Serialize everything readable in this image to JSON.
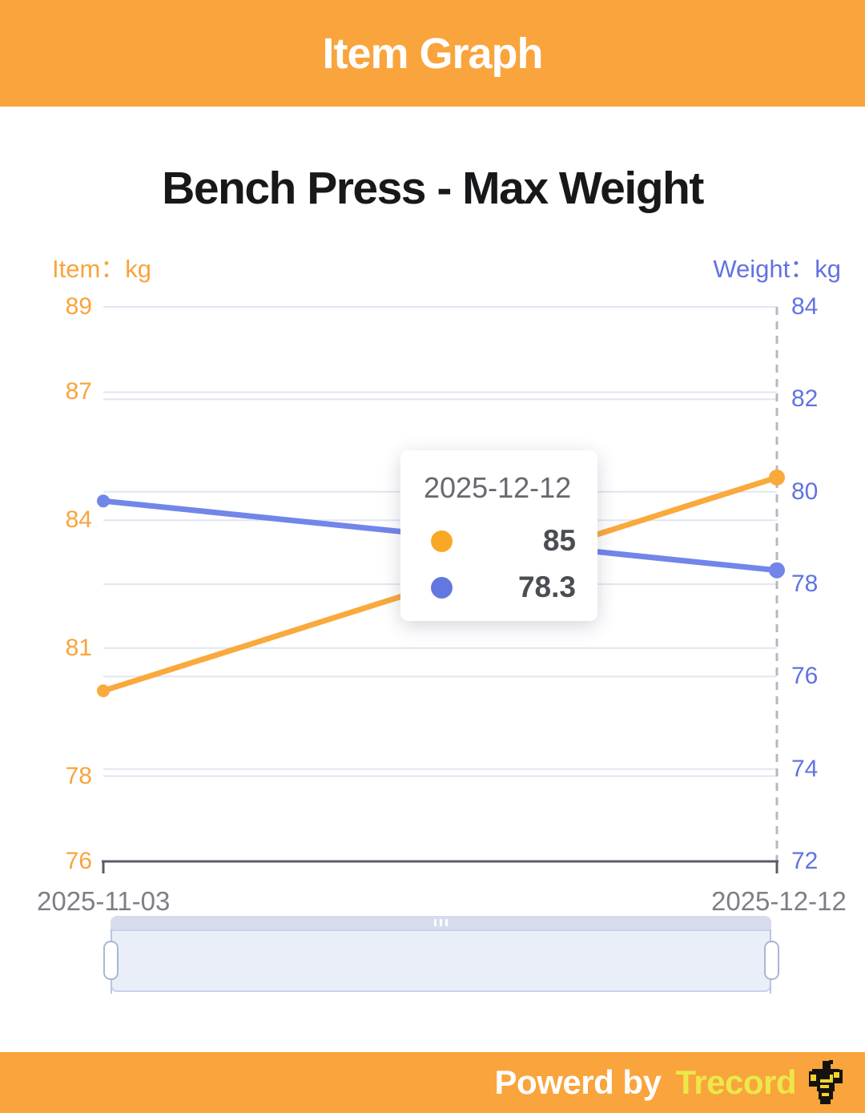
{
  "header": {
    "title": "Item Graph",
    "bg_color": "#F9A43C"
  },
  "chart_data": {
    "type": "line",
    "title": "Bench Press - Max Weight",
    "x": [
      "2025-11-03",
      "2025-12-12"
    ],
    "series": [
      {
        "name": "Item",
        "axis": "left",
        "color": "#FAA93C",
        "values": [
          80,
          85
        ]
      },
      {
        "name": "Weight",
        "axis": "right",
        "color": "#7285E8",
        "values": [
          79.8,
          78.3
        ]
      }
    ],
    "left_axis": {
      "name": "Item：kg",
      "unit": "kg",
      "ticks": [
        89,
        87,
        84,
        81,
        78,
        76
      ],
      "range": [
        76,
        89
      ],
      "color": "#F9A43C"
    },
    "right_axis": {
      "name": "Weight：kg",
      "unit": "kg",
      "ticks": [
        84,
        82,
        80,
        78,
        76,
        74,
        72
      ],
      "range": [
        72,
        84
      ],
      "color": "#6173E1"
    },
    "grid": true,
    "grid_color": "#E2E6F1",
    "axis_line_color": "#585D68",
    "axis_pointer_color": "#B4B8C3",
    "legend_position": "none",
    "tooltip": {
      "title": "2025-12-12",
      "rows": [
        {
          "series": "Item",
          "color": "#F9A825",
          "value": "85"
        },
        {
          "series": "Weight",
          "color": "#6377E0",
          "value": "78.3"
        }
      ]
    }
  },
  "slider": {
    "move_icon": "drag-dots-icon",
    "range": "full"
  },
  "footer": {
    "powered_by": "Powerd by",
    "brand": "Trecord",
    "brand_color": "#EBE84A",
    "bg_color": "#F9A43C",
    "icon": "bodybuilder-icon"
  }
}
